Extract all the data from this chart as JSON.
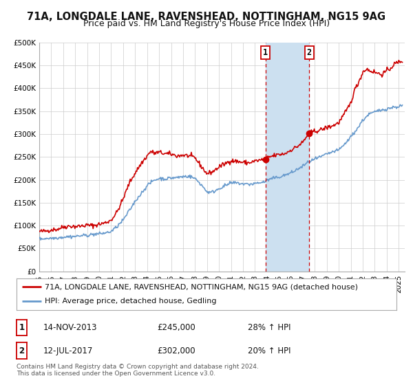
{
  "title_line1": "71A, LONGDALE LANE, RAVENSHEAD, NOTTINGHAM, NG15 9AG",
  "title_line2": "Price paid vs. HM Land Registry's House Price Index (HPI)",
  "xlim": [
    1995.0,
    2025.5
  ],
  "ylim": [
    0,
    500000
  ],
  "yticks": [
    0,
    50000,
    100000,
    150000,
    200000,
    250000,
    300000,
    350000,
    400000,
    450000,
    500000
  ],
  "ytick_labels": [
    "£0",
    "£50K",
    "£100K",
    "£150K",
    "£200K",
    "£250K",
    "£300K",
    "£350K",
    "£400K",
    "£450K",
    "£500K"
  ],
  "xticks": [
    1995,
    1996,
    1997,
    1998,
    1999,
    2000,
    2001,
    2002,
    2003,
    2004,
    2005,
    2006,
    2007,
    2008,
    2009,
    2010,
    2011,
    2012,
    2013,
    2014,
    2015,
    2016,
    2017,
    2018,
    2019,
    2020,
    2021,
    2022,
    2023,
    2024,
    2025
  ],
  "sale1_x": 2013.87,
  "sale1_y": 245000,
  "sale1_label": "14-NOV-2013",
  "sale1_price": "£245,000",
  "sale1_hpi": "28% ↑ HPI",
  "sale2_x": 2017.53,
  "sale2_y": 302000,
  "sale2_label": "12-JUL-2017",
  "sale2_price": "£302,000",
  "sale2_hpi": "20% ↑ HPI",
  "red_color": "#cc0000",
  "blue_color": "#6699cc",
  "shading_color": "#cce0f0",
  "background_color": "#ffffff",
  "grid_color": "#cccccc",
  "legend1_text": "71A, LONGDALE LANE, RAVENSHEAD, NOTTINGHAM, NG15 9AG (detached house)",
  "legend2_text": "HPI: Average price, detached house, Gedling",
  "footnote1": "Contains HM Land Registry data © Crown copyright and database right 2024.",
  "footnote2": "This data is licensed under the Open Government Licence v3.0.",
  "title_fontsize": 10.5,
  "subtitle_fontsize": 9,
  "tick_fontsize": 7.5,
  "legend_fontsize": 8,
  "table_fontsize": 8.5,
  "footnote_fontsize": 6.5
}
